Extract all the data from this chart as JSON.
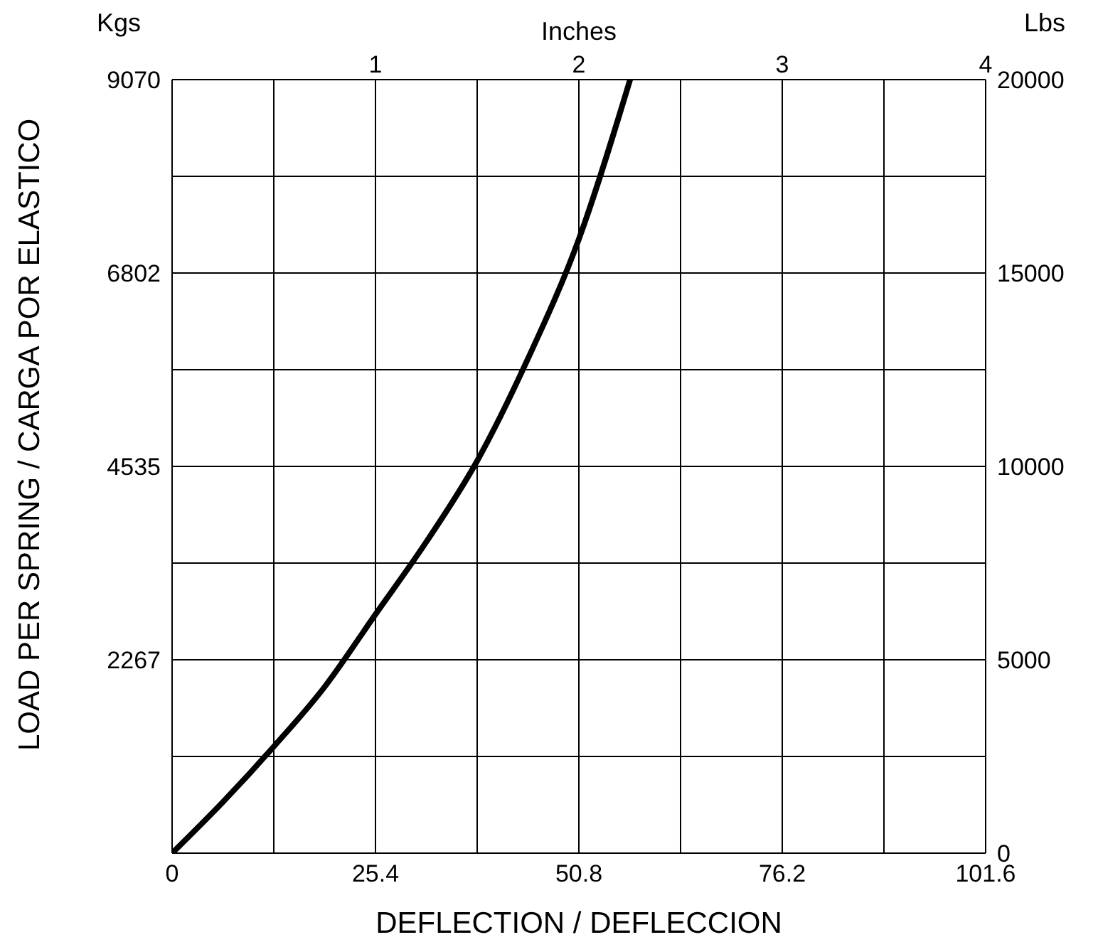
{
  "chart_data": {
    "type": "line",
    "xlabel": "DEFLECTION / DEFLECCION",
    "ylabel": "LOAD PER SPRING / CARGA POR ELASTICO",
    "x2label": "Inches",
    "y2label": "Lbs",
    "annotations": [
      "Kgs"
    ],
    "xlim": [
      0,
      101.6
    ],
    "xticks": [
      0,
      {
        "value": 12.7,
        "label": null
      },
      25.4,
      {
        "value": 38.1,
        "label": null
      },
      50.8,
      {
        "value": 63.5,
        "label": null
      },
      76.2,
      {
        "value": 88.9,
        "label": null
      },
      101.6
    ],
    "x2lim": [
      0,
      4
    ],
    "x2ticks": [
      1,
      2,
      3,
      4
    ],
    "ylim": [
      0,
      9070
    ],
    "yticks": [
      2267,
      4535,
      6802,
      9070
    ],
    "y2lim": [
      0,
      20000
    ],
    "y2ticks": [
      0,
      {
        "value": 2500,
        "label": null
      },
      5000,
      {
        "value": 7500,
        "label": null
      },
      10000,
      {
        "value": 12500,
        "label": null
      },
      15000,
      {
        "value": 17500,
        "label": null
      },
      20000
    ],
    "grid": true,
    "marker": "none",
    "line_style": "solid",
    "series": [
      {
        "color": "#000000",
        "x": [
          0,
          6.35,
          12.7,
          19.05,
          25.4,
          31.75,
          38.1,
          44.45,
          50.8,
          57.2
        ],
        "values": [
          0,
          600,
          1250,
          1950,
          2800,
          3650,
          4600,
          5800,
          7200,
          9070
        ]
      }
    ]
  }
}
